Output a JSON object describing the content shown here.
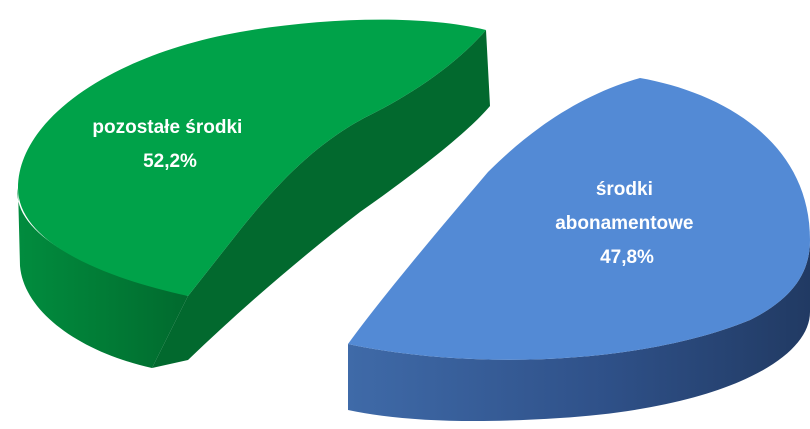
{
  "chart_data": {
    "type": "pie",
    "style": "3d-exploded",
    "title": "",
    "unit": "%",
    "slices": [
      {
        "label_lines": [
          "pozostałe środki"
        ],
        "label": "pozostałe środki",
        "value": 52.2,
        "value_text": "52,2%",
        "color_top": "#00a249",
        "color_side": "#017c36"
      },
      {
        "label_lines": [
          "środki",
          "abonamentowe"
        ],
        "label": "środki abonamentowe",
        "value": 47.8,
        "value_text": "47,8%",
        "color_top": "#538ad5",
        "color_side": "#2e4f83"
      }
    ],
    "legend": "none"
  }
}
